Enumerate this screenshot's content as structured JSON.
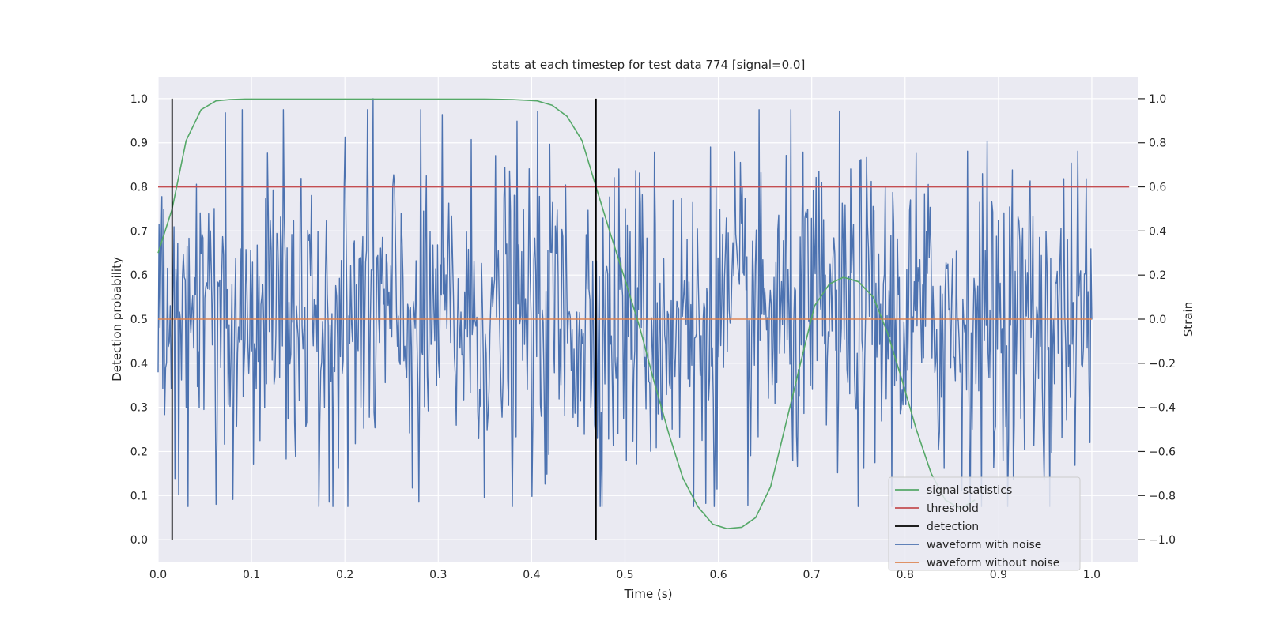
{
  "chart_data": {
    "type": "line",
    "title": "stats at each timestep for test data 774 [signal=0.0]",
    "xlabel": "Time (s)",
    "ylabel_left": "Detection probability",
    "ylabel_right": "Strain",
    "xlim": [
      0.0,
      1.05
    ],
    "ylim_left": [
      -0.05,
      1.05
    ],
    "ylim_right": [
      -1.1,
      1.1
    ],
    "x_ticks": [
      "0.0",
      "0.1",
      "0.2",
      "0.3",
      "0.4",
      "0.5",
      "0.6",
      "0.7",
      "0.8",
      "0.9",
      "1.0"
    ],
    "y_left_ticks": [
      "0.0",
      "0.1",
      "0.2",
      "0.3",
      "0.4",
      "0.5",
      "0.6",
      "0.7",
      "0.8",
      "0.9",
      "1.0"
    ],
    "y_right_ticks": [
      "−1.0",
      "−0.8",
      "−0.6",
      "−0.4",
      "−0.2",
      "0.0",
      "0.2",
      "0.4",
      "0.6",
      "0.8",
      "1.0"
    ],
    "grid": true,
    "legend_position": "lower-right",
    "legend": [
      {
        "label": "signal statistics",
        "color": "#55a868"
      },
      {
        "label": "threshold",
        "color": "#c44e52"
      },
      {
        "label": "detection",
        "color": "#000000"
      },
      {
        "label": "waveform with noise",
        "color": "#4c72b0"
      },
      {
        "label": "waveform without noise",
        "color": "#dd8452"
      }
    ],
    "series": [
      {
        "name": "signal statistics",
        "axis": "left",
        "color": "#55a868",
        "x": [
          0.0,
          0.015,
          0.03,
          0.046,
          0.062,
          0.077,
          0.093,
          0.15,
          0.25,
          0.35,
          0.38,
          0.406,
          0.422,
          0.438,
          0.454,
          0.469,
          0.485,
          0.5,
          0.516,
          0.531,
          0.547,
          0.562,
          0.578,
          0.594,
          0.609,
          0.625,
          0.64,
          0.656,
          0.672,
          0.688,
          0.703,
          0.719,
          0.734,
          0.75,
          0.766,
          0.781,
          0.797,
          0.812,
          0.828,
          0.843,
          0.859,
          0.875
        ],
        "y": [
          0.65,
          0.75,
          0.905,
          0.975,
          0.995,
          0.998,
          0.999,
          0.999,
          0.999,
          0.999,
          0.998,
          0.995,
          0.985,
          0.96,
          0.905,
          0.8,
          0.69,
          0.59,
          0.48,
          0.36,
          0.24,
          0.14,
          0.075,
          0.035,
          0.025,
          0.028,
          0.05,
          0.12,
          0.26,
          0.4,
          0.53,
          0.58,
          0.595,
          0.585,
          0.55,
          0.47,
          0.36,
          0.25,
          0.15,
          0.09,
          0.07,
          0.09
        ]
      },
      {
        "name": "threshold",
        "axis": "left",
        "color": "#c44e52",
        "x": [
          0.0,
          1.04
        ],
        "y": [
          0.8,
          0.8
        ]
      },
      {
        "name": "detection",
        "axis": "left",
        "color": "#000000",
        "type": "vlines",
        "x": [
          0.015,
          0.469
        ],
        "ymin": 0.0,
        "ymax": 1.0
      },
      {
        "name": "waveform with noise",
        "axis": "right",
        "color": "#4c72b0",
        "x_start": 0.0,
        "x_end": 1.0,
        "n_points": 1000,
        "y_range": [
          -0.85,
          1.0
        ],
        "y_std": 0.36,
        "notes_on_peaks": [
          [
            0.23,
            1.0
          ],
          [
            0.062,
            -0.84
          ],
          [
            0.183,
            -0.83
          ],
          [
            0.279,
            -0.83
          ],
          [
            0.574,
            -0.85
          ],
          [
            0.949,
            -0.73
          ],
          [
            0.998,
            -0.56
          ]
        ],
        "y": []
      },
      {
        "name": "waveform without noise",
        "axis": "right",
        "color": "#dd8452",
        "x": [
          0.0,
          1.0
        ],
        "y": [
          0.0,
          0.0
        ]
      }
    ]
  }
}
